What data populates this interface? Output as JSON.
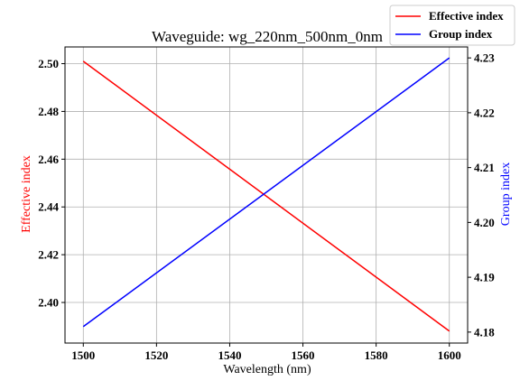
{
  "chart_data": {
    "type": "line",
    "title": "Waveguide: wg_220nm_500nm_0nm",
    "xlabel": "Wavelength (nm)",
    "ylabel_left": "Effective index",
    "ylabel_right": "Group index",
    "xlim": [
      1495,
      1605
    ],
    "ylim_left": [
      2.383,
      2.507
    ],
    "ylim_right": [
      4.178,
      4.232
    ],
    "x_ticks": [
      1500,
      1520,
      1540,
      1560,
      1580,
      1600
    ],
    "y_left_ticks": [
      2.4,
      2.42,
      2.44,
      2.46,
      2.48,
      2.5
    ],
    "y_left_tick_labels": [
      "2.40",
      "2.42",
      "2.44",
      "2.46",
      "2.48",
      "2.50"
    ],
    "y_right_ticks": [
      4.18,
      4.19,
      4.2,
      4.21,
      4.22,
      4.23
    ],
    "y_right_tick_labels": [
      "4.18",
      "4.19",
      "4.20",
      "4.21",
      "4.22",
      "4.23"
    ],
    "grid": true,
    "legend_position": "top-right",
    "series": [
      {
        "name": "Effective index",
        "axis": "left",
        "color": "#ff0000",
        "x": [
          1500,
          1600
        ],
        "y": [
          2.501,
          2.388
        ]
      },
      {
        "name": "Group index",
        "axis": "right",
        "color": "#0000ff",
        "x": [
          1500,
          1600
        ],
        "y": [
          4.181,
          4.23
        ]
      }
    ]
  }
}
